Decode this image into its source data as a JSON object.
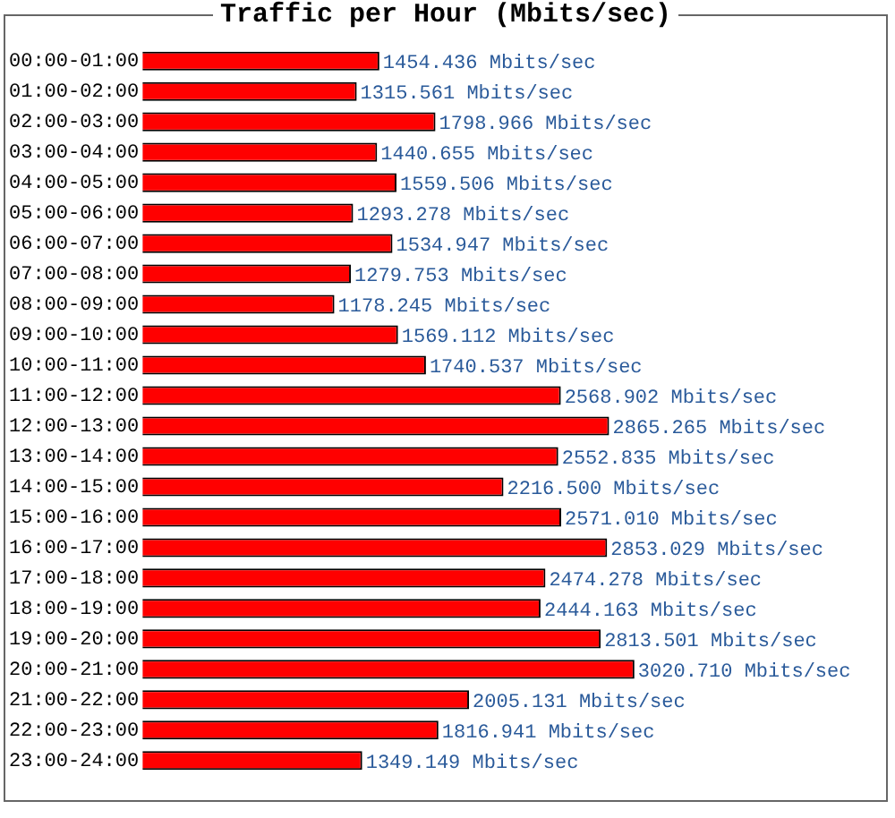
{
  "chart_data": {
    "type": "bar",
    "orientation": "horizontal",
    "title": "Traffic per Hour (Mbits/sec)",
    "categories": [
      "00:00-01:00",
      "01:00-02:00",
      "02:00-03:00",
      "03:00-04:00",
      "04:00-05:00",
      "05:00-06:00",
      "06:00-07:00",
      "07:00-08:00",
      "08:00-09:00",
      "09:00-10:00",
      "10:00-11:00",
      "11:00-12:00",
      "12:00-13:00",
      "13:00-14:00",
      "14:00-15:00",
      "15:00-16:00",
      "16:00-17:00",
      "17:00-18:00",
      "18:00-19:00",
      "19:00-20:00",
      "20:00-21:00",
      "21:00-22:00",
      "22:00-23:00",
      "23:00-24:00"
    ],
    "values": [
      1454.436,
      1315.561,
      1798.966,
      1440.655,
      1559.506,
      1293.278,
      1534.947,
      1279.753,
      1178.245,
      1569.112,
      1740.537,
      2568.902,
      2865.265,
      2552.835,
      2216.5,
      2571.01,
      2853.029,
      2474.278,
      2444.163,
      2813.501,
      3020.71,
      2005.131,
      1816.941,
      1349.149
    ],
    "value_labels": [
      "1454.436 Mbits/sec",
      "1315.561 Mbits/sec",
      "1798.966 Mbits/sec",
      "1440.655 Mbits/sec",
      "1559.506 Mbits/sec",
      "1293.278 Mbits/sec",
      "1534.947 Mbits/sec",
      "1279.753 Mbits/sec",
      "1178.245 Mbits/sec",
      "1569.112 Mbits/sec",
      "1740.537 Mbits/sec",
      "2568.902 Mbits/sec",
      "2865.265 Mbits/sec",
      "2552.835 Mbits/sec",
      "2216.500 Mbits/sec",
      "2571.010 Mbits/sec",
      "2853.029 Mbits/sec",
      "2474.278 Mbits/sec",
      "2444.163 Mbits/sec",
      "2813.501 Mbits/sec",
      "3020.710 Mbits/sec",
      "2005.131 Mbits/sec",
      "1816.941 Mbits/sec",
      "1349.149 Mbits/sec"
    ],
    "color": "#ff0000",
    "tick_labels": "y"
  }
}
